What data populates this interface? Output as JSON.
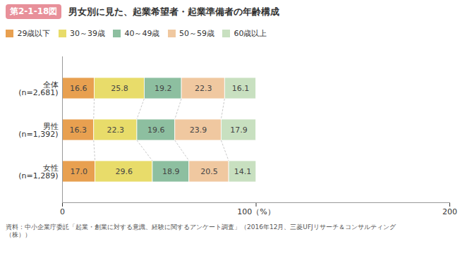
{
  "chart_data": {
    "type": "bar",
    "orientation": "horizontal",
    "stacked": true,
    "title": "男女別に見た、起業希望者・起業準備者の年齢構成",
    "annotations": [
      "第2-1-18図",
      "資料：中小企業庁委託「起業・創業に対する意識、経験に関するアンケート調査」（2016年12月、三菱UFJリサーチ＆コンサルティング",
      "（株））"
    ],
    "categories": [
      "全体\n(n=2,681)",
      "男性\n(n=1,392)",
      "女性\n(n=1,289)"
    ],
    "series": [
      {
        "name": "29歳以下",
        "color": "#E8A050",
        "values": [
          16.6,
          16.3,
          17.0
        ],
        "value_labels": [
          "16.6",
          "16.3",
          "17.0"
        ]
      },
      {
        "name": "30～39歳",
        "color": "#E8DC6A",
        "values": [
          25.8,
          22.3,
          29.6
        ],
        "value_labels": [
          "25.8",
          "22.3",
          "29.6"
        ]
      },
      {
        "name": "40～49歳",
        "color": "#8DBFA0",
        "values": [
          19.2,
          19.6,
          18.9
        ],
        "value_labels": [
          "19.2",
          "19.6",
          "18.9"
        ]
      },
      {
        "name": "50～59歳",
        "color": "#F0C8A0",
        "values": [
          22.3,
          23.9,
          20.5
        ],
        "value_labels": [
          "22.3",
          "23.9",
          "20.5"
        ]
      },
      {
        "name": "60歳以上",
        "color": "#C8E0C0",
        "values": [
          16.1,
          17.9,
          14.1
        ],
        "value_labels": [
          "16.1",
          "17.9",
          "14.1"
        ]
      }
    ],
    "xlim": [
      0,
      200
    ],
    "xticks": [
      0,
      {
        "value": 100,
        "label": "100（%）"
      },
      200
    ],
    "data_labels": true,
    "grid": false,
    "legend": "upper left"
  }
}
